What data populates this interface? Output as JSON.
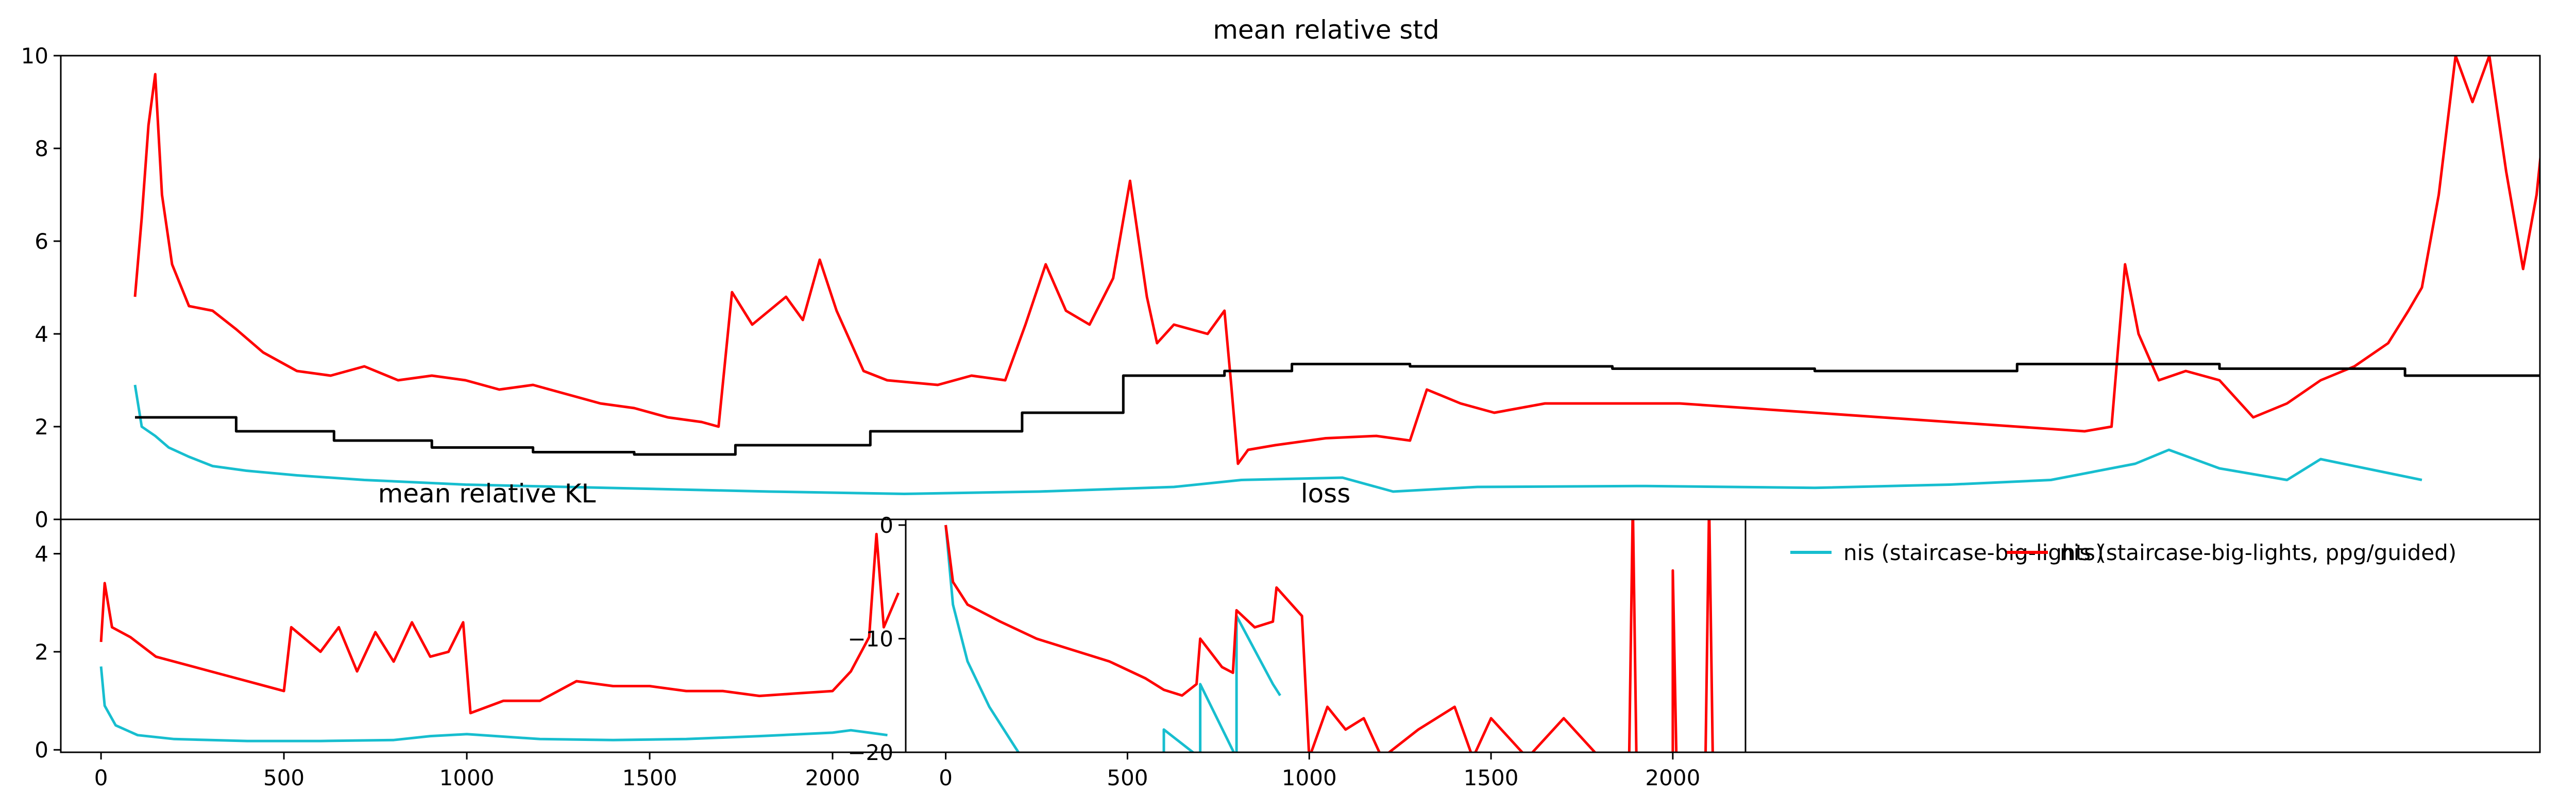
{
  "chart_data": [
    {
      "id": "std",
      "type": "line",
      "title": "mean relative std",
      "ylim": [
        0,
        10
      ],
      "yticks": [
        "0",
        "2",
        "4",
        "6",
        "8",
        "10"
      ],
      "yticks_values": [
        0,
        2,
        4,
        6,
        8,
        10
      ],
      "xlim": [
        0,
        7350
      ],
      "series": [
        {
          "color": "#17becf",
          "points": [
            [
              220,
              2.9
            ],
            [
              240,
              2.0
            ],
            [
              280,
              1.8
            ],
            [
              320,
              1.55
            ],
            [
              380,
              1.35
            ],
            [
              450,
              1.15
            ],
            [
              550,
              1.05
            ],
            [
              700,
              0.95
            ],
            [
              900,
              0.85
            ],
            [
              1200,
              0.75
            ],
            [
              1500,
              0.7
            ],
            [
              1800,
              0.65
            ],
            [
              2100,
              0.6
            ],
            [
              2500,
              0.55
            ],
            [
              2900,
              0.6
            ],
            [
              3300,
              0.7
            ],
            [
              3500,
              0.85
            ],
            [
              3800,
              0.9
            ],
            [
              3950,
              0.6
            ],
            [
              4200,
              0.7
            ],
            [
              4700,
              0.72
            ],
            [
              5200,
              0.68
            ],
            [
              5600,
              0.75
            ],
            [
              5900,
              0.85
            ],
            [
              6150,
              1.2
            ],
            [
              6250,
              1.5
            ],
            [
              6400,
              1.1
            ],
            [
              6600,
              0.85
            ],
            [
              6700,
              1.3
            ],
            [
              6900,
              1.0
            ],
            [
              7000,
              0.85
            ]
          ]
        },
        {
          "color": "#ff0000",
          "points": [
            [
              220,
              4.8
            ],
            [
              240,
              6.5
            ],
            [
              260,
              8.5
            ],
            [
              280,
              9.6
            ],
            [
              300,
              7.0
            ],
            [
              330,
              5.5
            ],
            [
              380,
              4.6
            ],
            [
              450,
              4.5
            ],
            [
              520,
              4.1
            ],
            [
              600,
              3.6
            ],
            [
              700,
              3.2
            ],
            [
              800,
              3.1
            ],
            [
              900,
              3.3
            ],
            [
              1000,
              3.0
            ],
            [
              1100,
              3.1
            ],
            [
              1200,
              3.0
            ],
            [
              1300,
              2.8
            ],
            [
              1400,
              2.9
            ],
            [
              1500,
              2.7
            ],
            [
              1600,
              2.5
            ],
            [
              1700,
              2.4
            ],
            [
              1800,
              2.2
            ],
            [
              1900,
              2.1
            ],
            [
              1950,
              2.0
            ],
            [
              1990,
              4.9
            ],
            [
              2050,
              4.2
            ],
            [
              2150,
              4.8
            ],
            [
              2200,
              4.3
            ],
            [
              2250,
              5.6
            ],
            [
              2300,
              4.5
            ],
            [
              2380,
              3.2
            ],
            [
              2450,
              3.0
            ],
            [
              2600,
              2.9
            ],
            [
              2700,
              3.1
            ],
            [
              2800,
              3.0
            ],
            [
              2860,
              4.2
            ],
            [
              2920,
              5.5
            ],
            [
              2980,
              4.5
            ],
            [
              3050,
              4.2
            ],
            [
              3120,
              5.2
            ],
            [
              3170,
              7.3
            ],
            [
              3220,
              4.8
            ],
            [
              3250,
              3.8
            ],
            [
              3300,
              4.2
            ],
            [
              3400,
              4.0
            ],
            [
              3450,
              4.5
            ],
            [
              3470,
              2.9
            ],
            [
              3490,
              1.2
            ],
            [
              3520,
              1.5
            ],
            [
              3600,
              1.6
            ],
            [
              3750,
              1.75
            ],
            [
              3900,
              1.8
            ],
            [
              4000,
              1.7
            ],
            [
              4050,
              2.8
            ],
            [
              4150,
              2.5
            ],
            [
              4250,
              2.3
            ],
            [
              4400,
              2.5
            ],
            [
              4600,
              2.5
            ],
            [
              4800,
              2.5
            ],
            [
              5000,
              2.4
            ],
            [
              5200,
              2.3
            ],
            [
              5400,
              2.2
            ],
            [
              5600,
              2.1
            ],
            [
              5800,
              2.0
            ],
            [
              6000,
              1.9
            ],
            [
              6080,
              2.0
            ],
            [
              6120,
              5.5
            ],
            [
              6160,
              4.0
            ],
            [
              6220,
              3.0
            ],
            [
              6300,
              3.2
            ],
            [
              6400,
              3.0
            ],
            [
              6500,
              2.2
            ],
            [
              6600,
              2.5
            ],
            [
              6700,
              3.0
            ],
            [
              6800,
              3.3
            ],
            [
              6900,
              3.8
            ],
            [
              6960,
              4.5
            ],
            [
              7000,
              5.0
            ],
            [
              7050,
              7.0
            ],
            [
              7100,
              10.0
            ],
            [
              7150,
              9.0
            ],
            [
              7200,
              10.0
            ],
            [
              7250,
              7.5
            ],
            [
              7300,
              5.4
            ],
            [
              7340,
              7.0
            ],
            [
              7360,
              8.4
            ]
          ]
        },
        {
          "color": "#000000",
          "step": true,
          "points": [
            [
              220,
              2.2
            ],
            [
              520,
              2.2
            ],
            [
              520,
              1.9
            ],
            [
              810,
              1.9
            ],
            [
              810,
              1.7
            ],
            [
              1100,
              1.7
            ],
            [
              1100,
              1.55
            ],
            [
              1400,
              1.55
            ],
            [
              1400,
              1.45
            ],
            [
              1700,
              1.45
            ],
            [
              1700,
              1.4
            ],
            [
              2000,
              1.4
            ],
            [
              2000,
              1.6
            ],
            [
              2400,
              1.6
            ],
            [
              2400,
              1.9
            ],
            [
              2850,
              1.9
            ],
            [
              2850,
              2.3
            ],
            [
              3150,
              2.3
            ],
            [
              3150,
              3.1
            ],
            [
              3450,
              3.1
            ],
            [
              3450,
              3.2
            ],
            [
              3650,
              3.2
            ],
            [
              3650,
              3.35
            ],
            [
              4000,
              3.35
            ],
            [
              4000,
              3.3
            ],
            [
              4600,
              3.3
            ],
            [
              4600,
              3.25
            ],
            [
              5200,
              3.25
            ],
            [
              5200,
              3.2
            ],
            [
              5800,
              3.2
            ],
            [
              5800,
              3.35
            ],
            [
              6400,
              3.35
            ],
            [
              6400,
              3.25
            ],
            [
              6950,
              3.25
            ],
            [
              6950,
              3.1
            ],
            [
              7370,
              3.1
            ]
          ]
        }
      ]
    },
    {
      "id": "kl",
      "type": "line",
      "title": "mean relative KL",
      "ylim": [
        -0.05,
        4.7
      ],
      "yticks": [
        "0",
        "2",
        "4"
      ],
      "yticks_values": [
        0,
        2,
        4
      ],
      "xlim": [
        -110,
        2200
      ],
      "xticks": [
        "0",
        "500",
        "1000",
        "1500",
        "2000"
      ],
      "xticks_values": [
        0,
        500,
        1000,
        1500,
        2000
      ],
      "series": [
        {
          "color": "#17becf",
          "points": [
            [
              0,
              1.7
            ],
            [
              10,
              0.9
            ],
            [
              40,
              0.5
            ],
            [
              100,
              0.3
            ],
            [
              200,
              0.22
            ],
            [
              400,
              0.18
            ],
            [
              600,
              0.18
            ],
            [
              800,
              0.2
            ],
            [
              900,
              0.28
            ],
            [
              1000,
              0.32
            ],
            [
              1200,
              0.22
            ],
            [
              1400,
              0.2
            ],
            [
              1600,
              0.22
            ],
            [
              1800,
              0.28
            ],
            [
              2000,
              0.35
            ],
            [
              2050,
              0.4
            ],
            [
              2100,
              0.35
            ],
            [
              2150,
              0.3
            ]
          ]
        },
        {
          "color": "#ff0000",
          "points": [
            [
              0,
              2.2
            ],
            [
              10,
              3.4
            ],
            [
              30,
              2.5
            ],
            [
              80,
              2.3
            ],
            [
              150,
              1.9
            ],
            [
              300,
              1.6
            ],
            [
              400,
              1.4
            ],
            [
              500,
              1.2
            ],
            [
              520,
              2.5
            ],
            [
              600,
              2.0
            ],
            [
              650,
              2.5
            ],
            [
              700,
              1.6
            ],
            [
              750,
              2.4
            ],
            [
              800,
              1.8
            ],
            [
              850,
              2.6
            ],
            [
              900,
              1.9
            ],
            [
              950,
              2.0
            ],
            [
              990,
              2.6
            ],
            [
              1010,
              0.75
            ],
            [
              1100,
              1.0
            ],
            [
              1200,
              1.0
            ],
            [
              1300,
              1.4
            ],
            [
              1400,
              1.3
            ],
            [
              1500,
              1.3
            ],
            [
              1600,
              1.2
            ],
            [
              1700,
              1.2
            ],
            [
              1800,
              1.1
            ],
            [
              1900,
              1.15
            ],
            [
              2000,
              1.2
            ],
            [
              2050,
              1.6
            ],
            [
              2100,
              2.3
            ],
            [
              2120,
              4.4
            ],
            [
              2140,
              2.5
            ],
            [
              2180,
              3.2
            ]
          ]
        }
      ]
    },
    {
      "id": "loss",
      "type": "line",
      "title": "loss",
      "ylim": [
        -20,
        0.5
      ],
      "yticks": [
        "0",
        "−10",
        "−20"
      ],
      "yticks_values": [
        0,
        -10,
        -20
      ],
      "xlim": [
        -110,
        2200
      ],
      "xticks": [
        "0",
        "500",
        "1000",
        "1500",
        "2000"
      ],
      "xticks_values": [
        0,
        500,
        1000,
        1500,
        2000
      ],
      "series": [
        {
          "color": "#17becf",
          "points": [
            [
              0,
              0
            ],
            [
              20,
              -7
            ],
            [
              60,
              -12
            ],
            [
              120,
              -16
            ],
            [
              180,
              -19
            ],
            [
              210,
              -20.5
            ],
            [
              600,
              -20.5
            ],
            [
              600,
              -18
            ],
            [
              700,
              -20.5
            ],
            [
              700,
              -14
            ],
            [
              800,
              -20.5
            ],
            [
              800,
              -8
            ],
            [
              850,
              -11
            ],
            [
              900,
              -14
            ],
            [
              920,
              -15
            ]
          ]
        },
        {
          "color": "#ff0000",
          "points": [
            [
              0,
              0
            ],
            [
              20,
              -5
            ],
            [
              60,
              -7
            ],
            [
              150,
              -8.5
            ],
            [
              250,
              -10
            ],
            [
              350,
              -11
            ],
            [
              450,
              -12
            ],
            [
              550,
              -13.5
            ],
            [
              600,
              -14.5
            ],
            [
              650,
              -15
            ],
            [
              690,
              -14
            ],
            [
              700,
              -10
            ],
            [
              760,
              -12.5
            ],
            [
              790,
              -13
            ],
            [
              800,
              -7.5
            ],
            [
              850,
              -9
            ],
            [
              900,
              -8.5
            ],
            [
              910,
              -5.5
            ],
            [
              980,
              -8
            ],
            [
              1000,
              -20.5
            ],
            [
              1050,
              -16
            ],
            [
              1100,
              -18
            ],
            [
              1150,
              -17
            ],
            [
              1200,
              -20.5
            ],
            [
              1300,
              -18
            ],
            [
              1400,
              -16
            ],
            [
              1450,
              -20.5
            ],
            [
              1500,
              -17
            ],
            [
              1600,
              -20.5
            ],
            [
              1700,
              -17
            ],
            [
              1800,
              -20.5
            ],
            [
              1880,
              -20.5
            ],
            [
              1890,
              2
            ],
            [
              1900,
              -20.5
            ],
            [
              2000,
              -20.5
            ],
            [
              2000,
              -4
            ],
            [
              2010,
              -20.5
            ],
            [
              2090,
              -20.5
            ],
            [
              2100,
              2
            ],
            [
              2110,
              -20.5
            ]
          ]
        }
      ],
      "legend": [
        "nis (staircase-big-lights)",
        "nis (staircase-big-lights, ppg/guided)"
      ]
    }
  ]
}
